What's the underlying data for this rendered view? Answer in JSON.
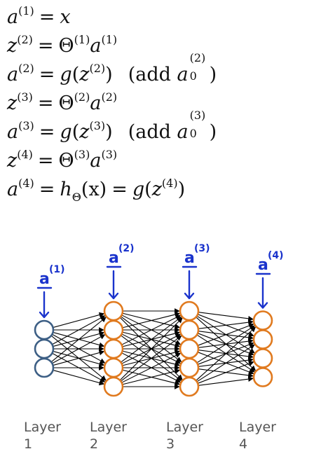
{
  "equations": [
    {
      "lhs": "a",
      "lhs_sup": "(1)",
      "rhs": "x"
    },
    {
      "lhs": "z",
      "lhs_sup": "(2)",
      "theta_sup": "(1)",
      "a_sup": "(1)"
    },
    {
      "lhs": "a",
      "lhs_sup": "(2)",
      "g_arg": "z",
      "g_arg_sup": "(2)",
      "note_prefix": "(add",
      "note_var": "a",
      "note_sub": "0",
      "note_sup": "(2)",
      "note_suffix": ")"
    },
    {
      "lhs": "z",
      "lhs_sup": "(3)",
      "theta_sup": "(2)",
      "a_sup": "(2)"
    },
    {
      "lhs": "a",
      "lhs_sup": "(3)",
      "g_arg": "z",
      "g_arg_sup": "(3)",
      "note_prefix": "(add",
      "note_var": "a",
      "note_sub": "0",
      "note_sup": "(3)",
      "note_suffix": ")"
    },
    {
      "lhs": "z",
      "lhs_sup": "(4)",
      "theta_sup": "(3)",
      "a_sup": "(3)"
    },
    {
      "lhs": "a",
      "lhs_sup": "(4)",
      "h": "h",
      "h_sub": "Θ",
      "h_arg": "(x)",
      "g_arg": "z",
      "g_arg_sup": "(4)"
    }
  ],
  "network": {
    "layers": [
      {
        "label_word": "Layer",
        "label_num": "1",
        "units": 3,
        "color": "#3d5f85",
        "annotation": "a",
        "annotation_sup": "(1)"
      },
      {
        "label_word": "Layer",
        "label_num": "2",
        "units": 5,
        "color": "#e07a1f",
        "annotation": "a",
        "annotation_sup": "(2)"
      },
      {
        "label_word": "Layer",
        "label_num": "3",
        "units": 5,
        "color": "#e07a1f",
        "annotation": "a",
        "annotation_sup": "(3)"
      },
      {
        "label_word": "Layer",
        "label_num": "4",
        "units": 4,
        "color": "#e07a1f",
        "annotation": "a",
        "annotation_sup": "(4)"
      }
    ],
    "ink_color": "#1a33cc",
    "edge_color": "#000000"
  }
}
